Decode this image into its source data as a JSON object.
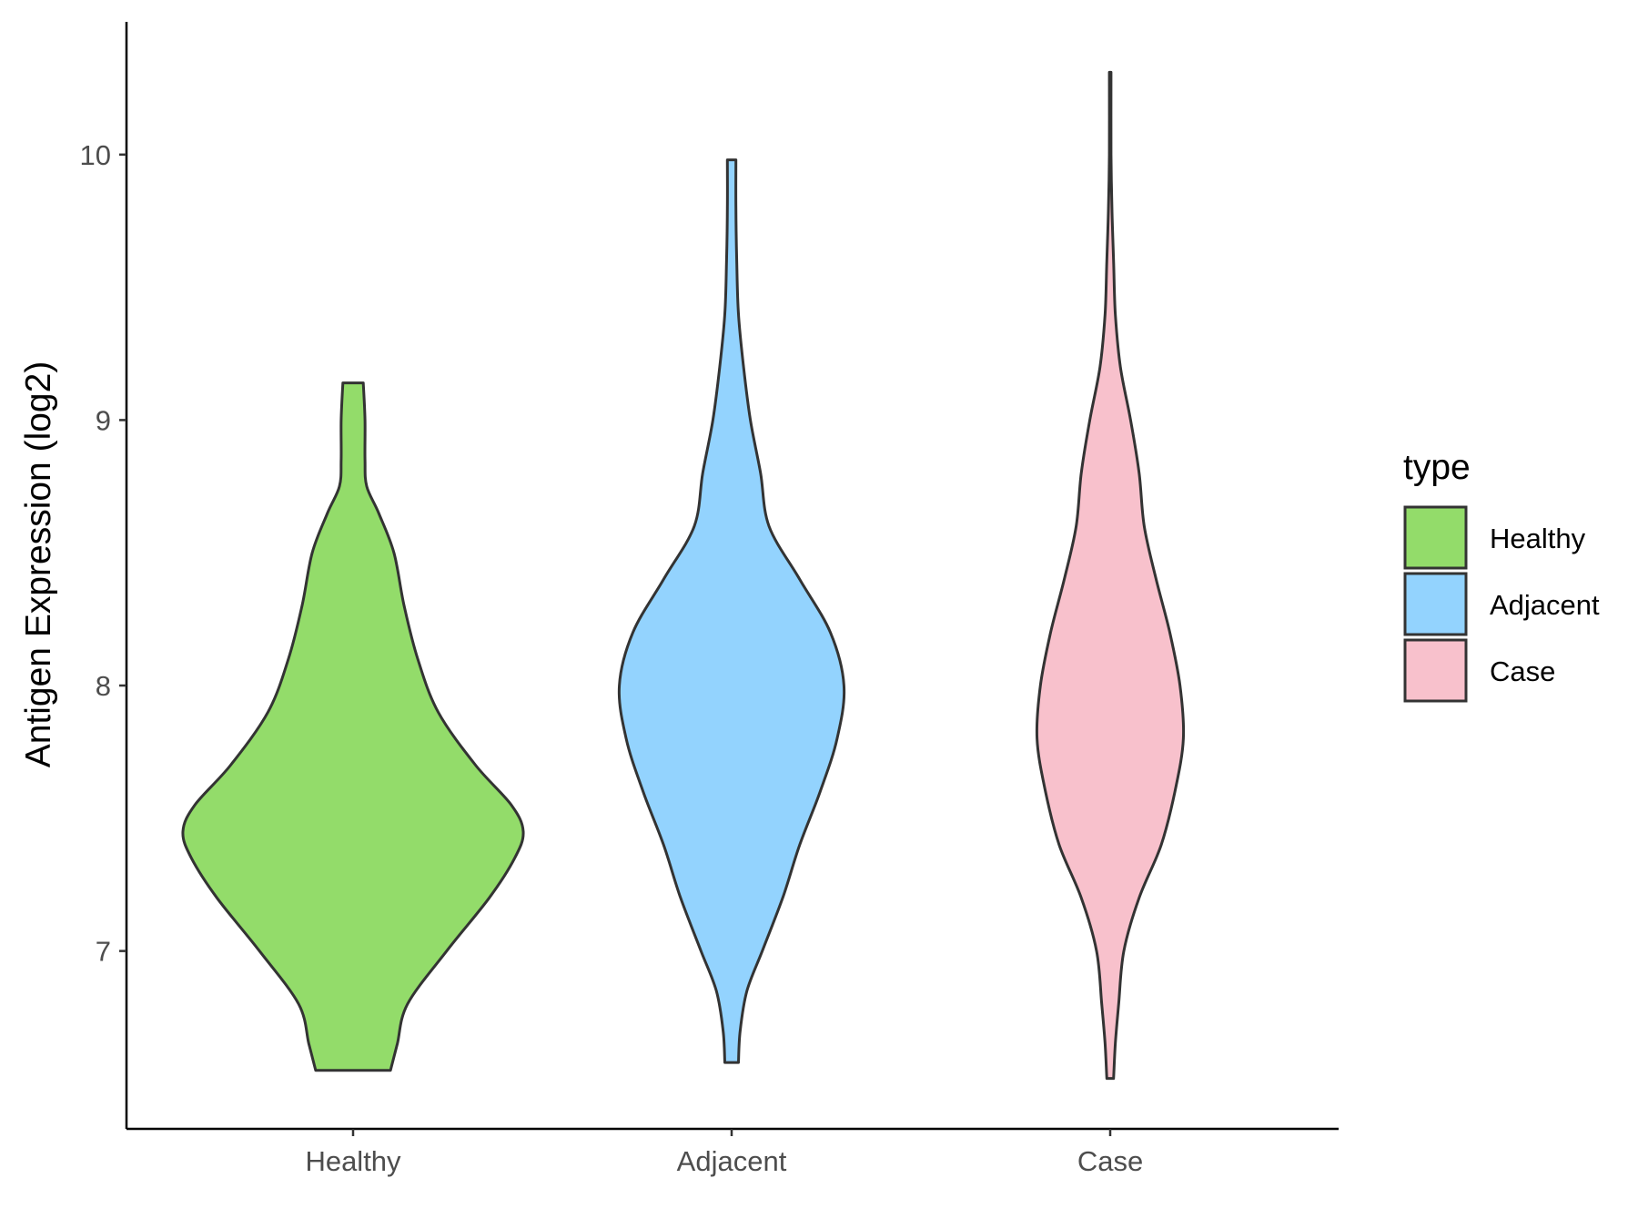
{
  "chart_data": {
    "type": "violin",
    "title": "",
    "xlabel": "",
    "ylabel": "Antigen Expression (log2)",
    "ylim": [
      6.33,
      10.5
    ],
    "yticks": [
      7,
      8,
      9,
      10
    ],
    "yticklabels": [
      "7",
      "8",
      "9",
      "10"
    ],
    "categories": [
      "Healthy",
      "Adjacent",
      "Case"
    ],
    "legend": {
      "title": "type",
      "placement": "right",
      "entries": [
        "Healthy",
        "Adjacent",
        "Case"
      ]
    },
    "colors": {
      "Healthy": "#93dc6a",
      "Adjacent": "#93d3fe",
      "Case": "#f8c1cc",
      "outline": "#333333"
    },
    "series": [
      {
        "category": "Healthy",
        "min": 6.55,
        "max": 9.14,
        "density": [
          [
            6.55,
            0.22
          ],
          [
            6.65,
            0.26
          ],
          [
            6.8,
            0.32
          ],
          [
            7.0,
            0.55
          ],
          [
            7.2,
            0.8
          ],
          [
            7.35,
            0.95
          ],
          [
            7.45,
            1.0
          ],
          [
            7.55,
            0.93
          ],
          [
            7.7,
            0.72
          ],
          [
            7.9,
            0.5
          ],
          [
            8.1,
            0.38
          ],
          [
            8.3,
            0.3
          ],
          [
            8.5,
            0.24
          ],
          [
            8.65,
            0.15
          ],
          [
            8.75,
            0.08
          ],
          [
            8.85,
            0.07
          ],
          [
            9.0,
            0.07
          ],
          [
            9.14,
            0.06
          ]
        ]
      },
      {
        "category": "Adjacent",
        "min": 6.58,
        "max": 9.98,
        "density": [
          [
            6.58,
            0.04
          ],
          [
            6.7,
            0.05
          ],
          [
            6.85,
            0.09
          ],
          [
            7.0,
            0.18
          ],
          [
            7.2,
            0.3
          ],
          [
            7.4,
            0.4
          ],
          [
            7.6,
            0.52
          ],
          [
            7.8,
            0.62
          ],
          [
            8.0,
            0.66
          ],
          [
            8.2,
            0.58
          ],
          [
            8.4,
            0.4
          ],
          [
            8.6,
            0.22
          ],
          [
            8.8,
            0.17
          ],
          [
            9.0,
            0.11
          ],
          [
            9.2,
            0.07
          ],
          [
            9.4,
            0.04
          ],
          [
            9.6,
            0.03
          ],
          [
            9.8,
            0.025
          ],
          [
            9.98,
            0.025
          ]
        ]
      },
      {
        "category": "Case",
        "min": 6.52,
        "max": 10.31,
        "density": [
          [
            6.52,
            0.02
          ],
          [
            6.65,
            0.03
          ],
          [
            6.8,
            0.05
          ],
          [
            7.0,
            0.08
          ],
          [
            7.2,
            0.17
          ],
          [
            7.4,
            0.3
          ],
          [
            7.6,
            0.38
          ],
          [
            7.8,
            0.43
          ],
          [
            8.0,
            0.41
          ],
          [
            8.2,
            0.35
          ],
          [
            8.4,
            0.27
          ],
          [
            8.6,
            0.2
          ],
          [
            8.8,
            0.17
          ],
          [
            9.0,
            0.12
          ],
          [
            9.2,
            0.06
          ],
          [
            9.4,
            0.03
          ],
          [
            9.6,
            0.02
          ],
          [
            9.8,
            0.01
          ],
          [
            10.0,
            0.005
          ],
          [
            10.31,
            0.005
          ]
        ]
      }
    ]
  }
}
